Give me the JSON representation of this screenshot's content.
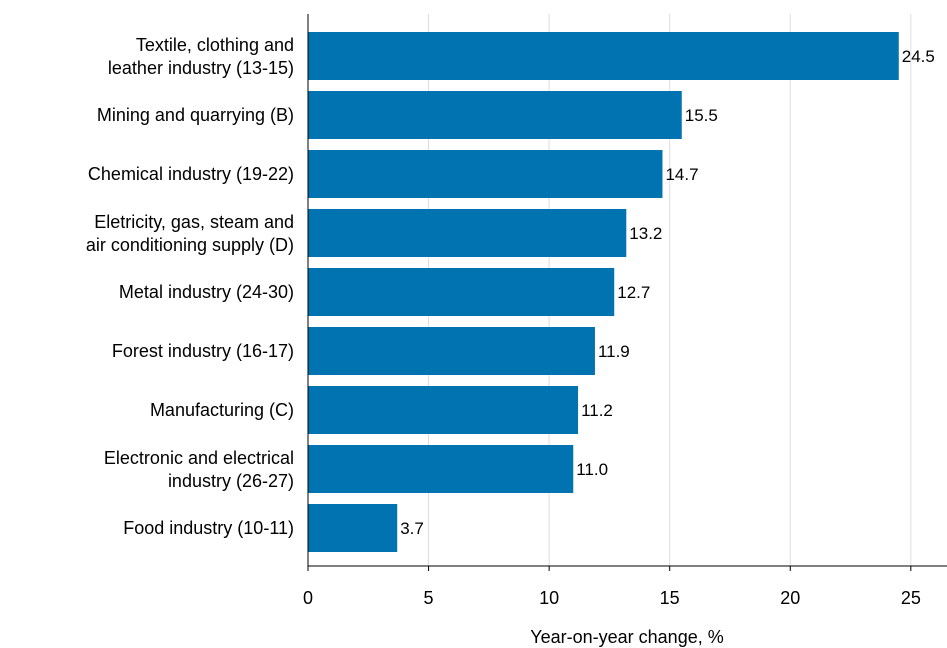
{
  "chart_data": {
    "type": "bar",
    "orientation": "horizontal",
    "categories": [
      [
        "Textile, clothing and",
        "leather industry (13-15)"
      ],
      [
        "Mining and quarrying (B)"
      ],
      [
        "Chemical industry (19-22)"
      ],
      [
        "Eletricity, gas, steam and",
        "air conditioning supply (D)"
      ],
      [
        "Metal industry (24-30)"
      ],
      [
        "Forest industry (16-17)"
      ],
      [
        "Manufacturing (C)"
      ],
      [
        "Electronic and electrical",
        "industry (26-27)"
      ],
      [
        "Food industry (10-11)"
      ]
    ],
    "values": [
      24.5,
      15.5,
      14.7,
      13.2,
      12.7,
      11.9,
      11.2,
      11.0,
      3.7
    ],
    "value_labels": [
      "24.5",
      "15.5",
      "14.7",
      "13.2",
      "12.7",
      "11.9",
      "11.2",
      "11.0",
      "3.7"
    ],
    "xlabel": "Year-on-year change, %",
    "ylabel": "",
    "xlim": [
      0,
      26.5
    ],
    "xticks": [
      0,
      5,
      10,
      15,
      20,
      25
    ],
    "xtick_labels": [
      "0",
      "5",
      "10",
      "15",
      "20",
      "25"
    ],
    "grid": "vertical",
    "bar_color": "#0073b0",
    "grid_color": "#dcdcdc"
  }
}
